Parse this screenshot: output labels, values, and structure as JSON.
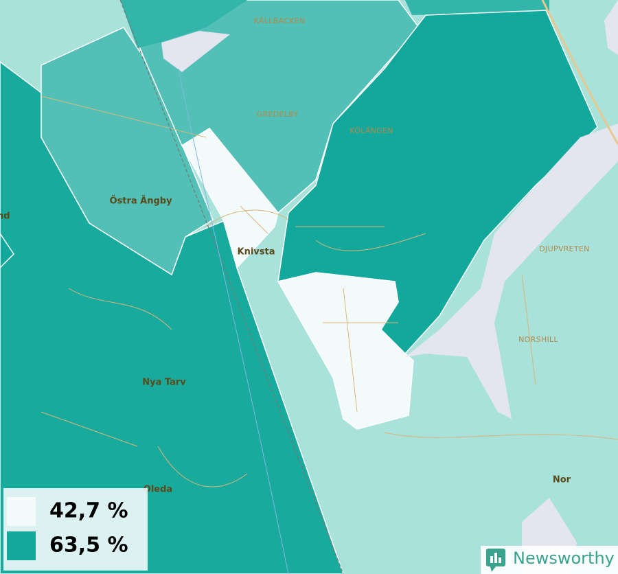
{
  "places": [
    {
      "label": "KÄLLBACKEN"
    },
    {
      "label": "GREDELBY"
    },
    {
      "label": "KÖLÄNGEN"
    },
    {
      "label": "DJUPVRETEN"
    },
    {
      "label": "NORSHILL"
    },
    {
      "label": "Östra Ängby"
    },
    {
      "label": "Knivsta"
    },
    {
      "label": "Nya Tarv"
    },
    {
      "label": "Oleda"
    },
    {
      "label": "Nor"
    },
    {
      "label": "nd"
    }
  ],
  "legend": {
    "items": [
      {
        "label": "42,7 %",
        "color": "#f2fbfa"
      },
      {
        "label": "63,5 %",
        "color": "#12a89c"
      }
    ]
  },
  "brand": "Newsworthy"
}
